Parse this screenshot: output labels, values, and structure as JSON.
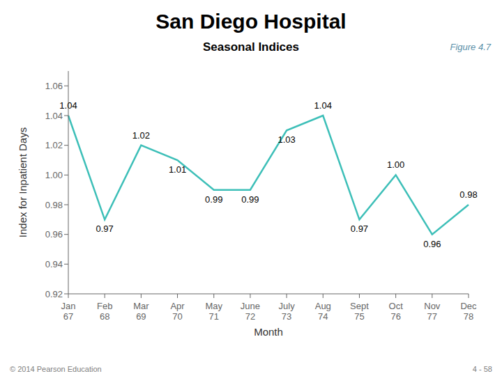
{
  "chart_data": {
    "type": "line",
    "title": "San Diego Hospital",
    "subtitle": "Seasonal Indices",
    "annotations": [
      "Figure 4.7",
      "© 2014 Pearson Education",
      "4 - 58"
    ],
    "x_label": "Month",
    "y_label": "Index for Inpatient Days",
    "categories": [
      "Jan\n67",
      "Feb\n68",
      "Mar\n69",
      "Apr\n70",
      "May\n71",
      "June\n72",
      "July\n73",
      "Aug\n74",
      "Sept\n75",
      "Oct\n76",
      "Nov\n77",
      "Dec\n78"
    ],
    "values": [
      1.04,
      0.97,
      1.02,
      1.01,
      0.99,
      0.99,
      1.03,
      1.04,
      0.97,
      1.0,
      0.96,
      0.98
    ],
    "value_labels": [
      "1.04",
      "0.97",
      "1.02",
      "1.01",
      "0.99",
      "0.99",
      "1.03",
      "1.04",
      "0.97",
      "1.00",
      "0.96",
      "0.98"
    ],
    "data_labels": true,
    "color": "#3dbfb8",
    "ylim": [
      0.92,
      1.07
    ],
    "yticks": [
      0.92,
      0.94,
      0.96,
      0.98,
      {
        "value": 1.0,
        "label": "1.00"
      },
      1.02,
      1.04,
      1.06
    ],
    "grid": false
  }
}
